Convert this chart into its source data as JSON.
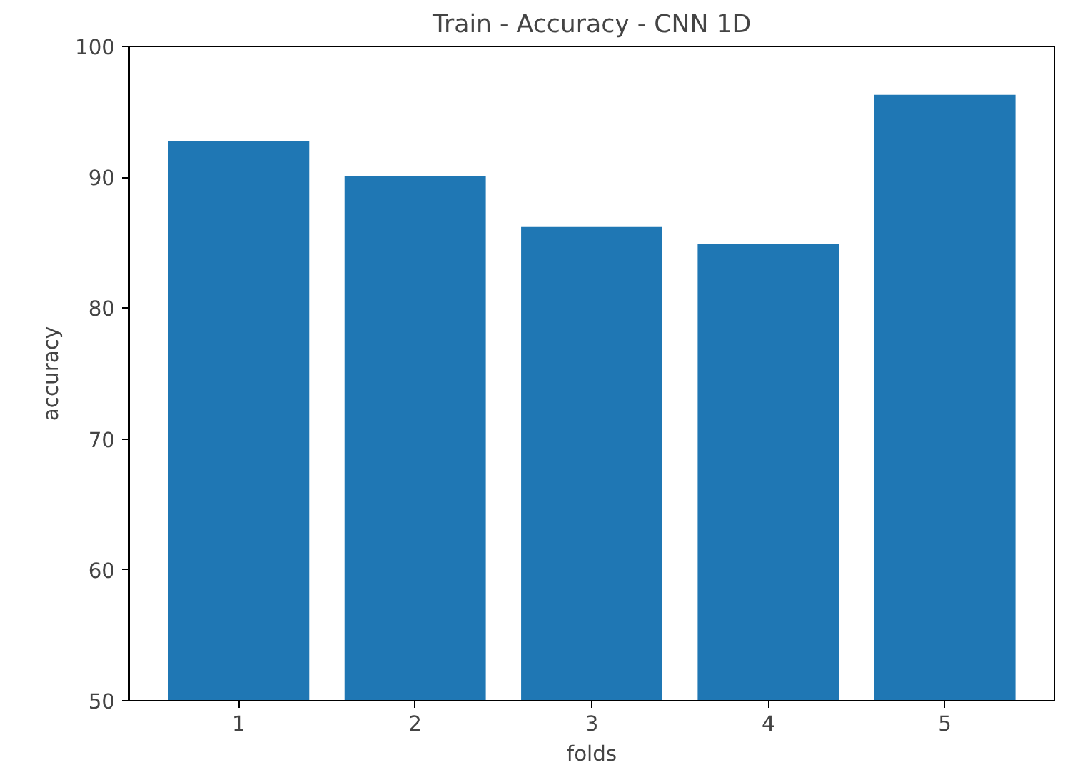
{
  "chart_data": {
    "type": "bar",
    "title": "Train - Accuracy - CNN 1D",
    "xlabel": "folds",
    "ylabel": "accuracy",
    "categories": [
      "1",
      "2",
      "3",
      "4",
      "5"
    ],
    "values": [
      92.8,
      90.1,
      86.2,
      84.9,
      96.3
    ],
    "color": "#1f77b4",
    "ylim": [
      50,
      100
    ],
    "yticks": [
      50,
      60,
      70,
      80,
      90,
      100
    ],
    "grid": false
  }
}
